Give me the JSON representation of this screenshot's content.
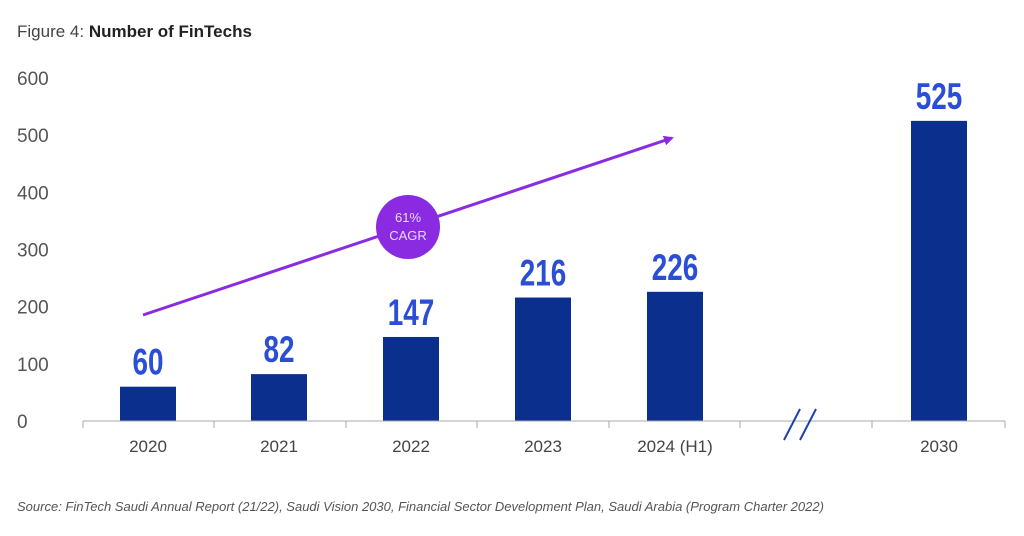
{
  "figure_label": "Figure 4:",
  "figure_title": "Number of FinTechs",
  "source": "Source: FinTech Saudi Annual Report (21/22), Saudi Vision 2030, Financial Sector Development Plan, Saudi Arabia (Program Charter 2022)",
  "chart_data": {
    "type": "bar",
    "title": "Number of FinTechs",
    "categories": [
      "2020",
      "2021",
      "2022",
      "2023",
      "2024 (H1)",
      "2030"
    ],
    "values": [
      60,
      82,
      147,
      216,
      226,
      525
    ],
    "data_labels": [
      "60",
      "82",
      "147",
      "216",
      "226",
      "525"
    ],
    "ylim": [
      0,
      600
    ],
    "yticks": [
      "0",
      "100",
      "200",
      "300",
      "400",
      "500",
      "600"
    ],
    "grid": false,
    "axis_break_between": [
      "2024 (H1)",
      "2030"
    ],
    "annotation": {
      "line1": "61%",
      "line2": "CAGR"
    },
    "colors": {
      "bar": "#0a2f8c",
      "label": "#2b4ed6",
      "cagr": "#8a2be2"
    }
  }
}
